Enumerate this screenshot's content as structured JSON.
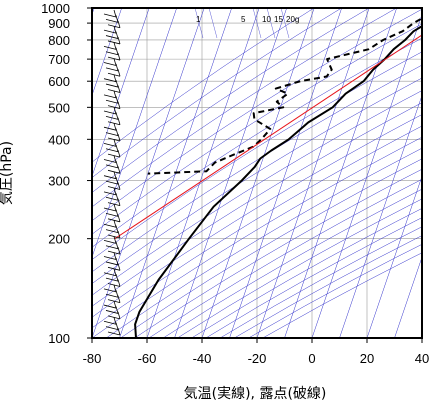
{
  "chart_data": {
    "type": "line",
    "chart_kind": "skew-T log-p emagram",
    "xlabel": "気温(実線), 露点(破線)",
    "ylabel": "気圧(hPa)",
    "x_unit": "°C",
    "y_scale": "log",
    "y_reversed": true,
    "xlim": [
      -80,
      40
    ],
    "ylim": [
      1000,
      100
    ],
    "xticks": [
      -80,
      -60,
      -40,
      -20,
      0,
      20,
      40
    ],
    "xtick_labels": [
      "-80",
      "-60",
      "-40",
      "-20",
      "0",
      "20",
      "40"
    ],
    "yticks": [
      100,
      200,
      300,
      400,
      500,
      600,
      700,
      800,
      900,
      1000
    ],
    "ytick_labels": [
      "100",
      "200",
      "300",
      "400",
      "500",
      "600",
      "700",
      "800",
      "900",
      "1000"
    ],
    "mixing_ratio_labels": [
      {
        "text": "1",
        "value": 1
      },
      {
        "text": "5",
        "value": 5
      },
      {
        "text": "10",
        "value": 10
      },
      {
        "text": "15",
        "value": 15
      },
      {
        "text": "20g",
        "value": 20
      }
    ],
    "series": [
      {
        "id": "temperature",
        "style": "solid",
        "color": "#000000",
        "points": [
          {
            "p": 1000,
            "t": 12
          },
          {
            "p": 975,
            "t": 11
          },
          {
            "p": 950,
            "t": 8
          },
          {
            "p": 925,
            "t": 6
          },
          {
            "p": 900,
            "t": 4
          },
          {
            "p": 875,
            "t": 1
          },
          {
            "p": 850,
            "t": -1
          },
          {
            "p": 800,
            "t": -3
          },
          {
            "p": 750,
            "t": -6
          },
          {
            "p": 700,
            "t": -8
          },
          {
            "p": 650,
            "t": -11
          },
          {
            "p": 600,
            "t": -13
          },
          {
            "p": 550,
            "t": -18
          },
          {
            "p": 500,
            "t": -21
          },
          {
            "p": 450,
            "t": -28
          },
          {
            "p": 400,
            "t": -33
          },
          {
            "p": 370,
            "t": -38
          },
          {
            "p": 350,
            "t": -41
          },
          {
            "p": 330,
            "t": -42
          },
          {
            "p": 300,
            "t": -45
          },
          {
            "p": 250,
            "t": -52
          },
          {
            "p": 200,
            "t": -57
          },
          {
            "p": 150,
            "t": -63
          },
          {
            "p": 120,
            "t": -66
          },
          {
            "p": 110,
            "t": -66
          },
          {
            "p": 100,
            "t": -64
          }
        ]
      },
      {
        "id": "dewpoint",
        "style": "dashed",
        "color": "#000000",
        "points": [
          {
            "p": 1000,
            "t": 12
          },
          {
            "p": 975,
            "t": 5
          },
          {
            "p": 950,
            "t": 0
          },
          {
            "p": 925,
            "t": 0
          },
          {
            "p": 900,
            "t": -2
          },
          {
            "p": 850,
            "t": -5
          },
          {
            "p": 800,
            "t": -11
          },
          {
            "p": 750,
            "t": -15
          },
          {
            "p": 700,
            "t": -29
          },
          {
            "p": 650,
            "t": -26
          },
          {
            "p": 620,
            "t": -27
          },
          {
            "p": 600,
            "t": -36
          },
          {
            "p": 570,
            "t": -44
          },
          {
            "p": 550,
            "t": -39
          },
          {
            "p": 520,
            "t": -42
          },
          {
            "p": 500,
            "t": -39
          },
          {
            "p": 480,
            "t": -49
          },
          {
            "p": 460,
            "t": -48
          },
          {
            "p": 430,
            "t": -41
          },
          {
            "p": 400,
            "t": -43
          },
          {
            "p": 380,
            "t": -45
          },
          {
            "p": 360,
            "t": -51
          },
          {
            "p": 340,
            "t": -57
          },
          {
            "p": 320,
            "t": -59
          },
          {
            "p": 315,
            "t": -80
          }
        ]
      },
      {
        "id": "reference",
        "style": "solid",
        "color": "#e8141b",
        "points": [
          {
            "p": 1000,
            "t": 14
          },
          {
            "p": 200,
            "t": -84
          }
        ]
      }
    ],
    "wind_barbs": {
      "location": "left",
      "color": "#000000",
      "count": 60
    }
  }
}
